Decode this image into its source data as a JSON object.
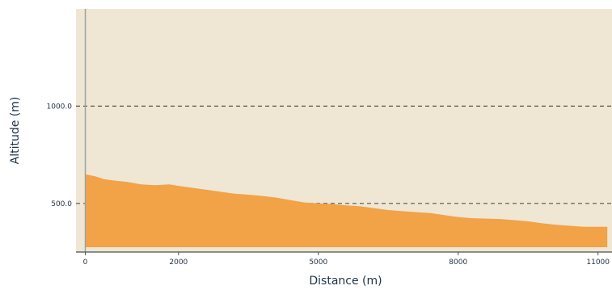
{
  "chart_data": {
    "type": "area",
    "title": "",
    "xlabel": "Distance (m)",
    "ylabel": "Altitude (m)",
    "x_ticks": [
      0,
      2000,
      5000,
      8000,
      11000
    ],
    "x_tick_labels": [
      "0",
      "2000",
      "5000",
      "8000",
      "11000"
    ],
    "y_ticks": [
      500,
      1000
    ],
    "y_tick_labels": [
      "500.0",
      "1000.0"
    ],
    "xlim": [
      -200,
      11300
    ],
    "ylim": [
      250,
      1500
    ],
    "grid": "horizontal dashed at y ticks",
    "colors": {
      "background": "#efe6d4",
      "fill": "#f2a247",
      "gridline": "#555555",
      "axis": "#9aa3a0",
      "text": "#1f3347"
    },
    "series": [
      {
        "x": [
          0,
          200,
          400,
          600,
          900,
          1200,
          1500,
          1800,
          2000,
          2300,
          2600,
          2900,
          3200,
          3500,
          3800,
          4100,
          4400,
          4700,
          5000,
          5300,
          5600,
          5900,
          6200,
          6500,
          6800,
          7100,
          7400,
          7700,
          8000,
          8300,
          8600,
          8900,
          9200,
          9500,
          9800,
          10100,
          10400,
          10700,
          11000,
          11200
        ],
        "y": [
          650,
          640,
          625,
          618,
          610,
          598,
          594,
          598,
          590,
          580,
          570,
          560,
          550,
          545,
          538,
          530,
          517,
          505,
          500,
          497,
          490,
          485,
          475,
          466,
          460,
          455,
          450,
          440,
          430,
          424,
          422,
          420,
          414,
          408,
          398,
          390,
          385,
          380,
          380,
          380
        ]
      }
    ]
  }
}
